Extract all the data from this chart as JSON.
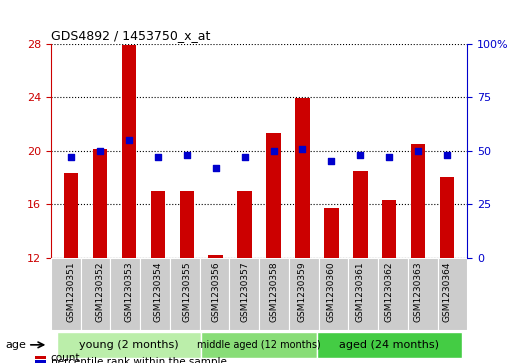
{
  "title": "GDS4892 / 1453750_x_at",
  "samples": [
    "GSM1230351",
    "GSM1230352",
    "GSM1230353",
    "GSM1230354",
    "GSM1230355",
    "GSM1230356",
    "GSM1230357",
    "GSM1230358",
    "GSM1230359",
    "GSM1230360",
    "GSM1230361",
    "GSM1230362",
    "GSM1230363",
    "GSM1230364"
  ],
  "counts": [
    18.3,
    20.1,
    27.9,
    17.0,
    17.0,
    12.2,
    17.0,
    21.3,
    23.9,
    15.7,
    18.5,
    16.3,
    20.5,
    18.0
  ],
  "percentiles": [
    47,
    50,
    55,
    47,
    48,
    42,
    47,
    50,
    51,
    45,
    48,
    47,
    50,
    48
  ],
  "ylim_left": [
    12,
    28
  ],
  "ylim_right": [
    0,
    100
  ],
  "yticks_left": [
    12,
    16,
    20,
    24,
    28
  ],
  "yticks_right": [
    0,
    25,
    50,
    75,
    100
  ],
  "bar_color": "#cc0000",
  "dot_color": "#0000cc",
  "groups": [
    {
      "label": "young (2 months)",
      "start": 0,
      "end": 5,
      "color": "#bbeeaa"
    },
    {
      "label": "middle aged (12 months)",
      "start": 5,
      "end": 9,
      "color": "#88dd77"
    },
    {
      "label": "aged (24 months)",
      "start": 9,
      "end": 14,
      "color": "#44cc44"
    }
  ],
  "age_label": "age",
  "legend_count_label": "count",
  "legend_percentile_label": "percentile rank within the sample",
  "tick_bg_color": "#cccccc",
  "bg_color": "#ffffff"
}
